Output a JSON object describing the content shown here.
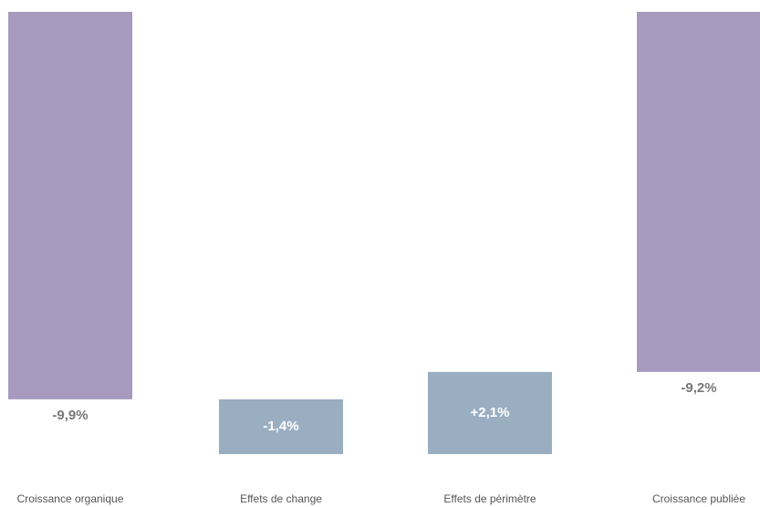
{
  "chart_data": {
    "type": "waterfall",
    "categories": [
      "Croissance organique",
      "Effets de change",
      "Effets de périmètre",
      "Croissance publiée"
    ],
    "values": [
      -9.9,
      -1.4,
      2.1,
      -9.2
    ],
    "value_labels": [
      "-9,9%",
      "-1,4%",
      "+2,1%",
      "-9,2%"
    ],
    "measures": [
      "absolute",
      "relative",
      "relative",
      "total"
    ],
    "colors": {
      "absolute": "#a89abe",
      "total": "#a89abe",
      "relative": "#9aaec2"
    }
  }
}
